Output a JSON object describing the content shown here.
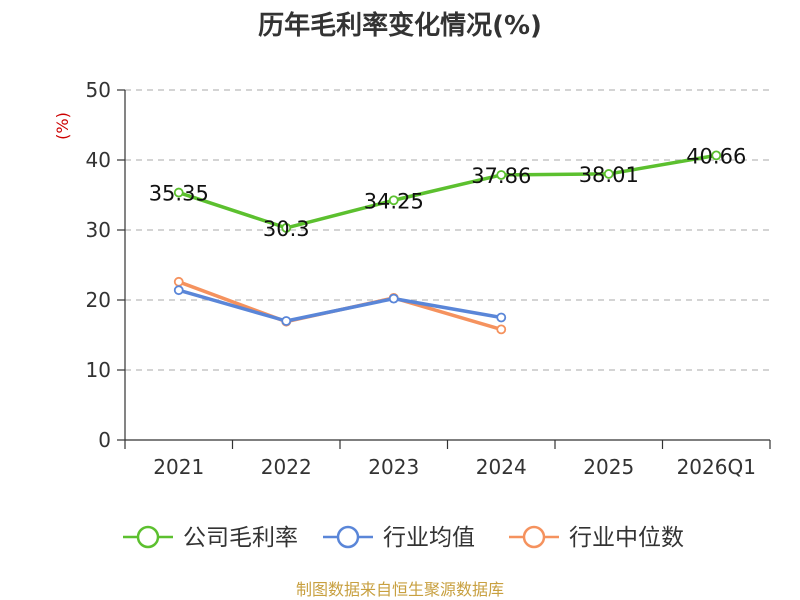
{
  "chart_data": {
    "type": "line",
    "title": "历年毛利率变化情况(%)",
    "ylabel": "(%)",
    "xlabel": "",
    "categories": [
      "2021",
      "2022",
      "2023",
      "2024",
      "2025",
      "2026Q1"
    ],
    "ylim": [
      0,
      50
    ],
    "yticks": [
      0,
      10,
      20,
      30,
      40,
      50
    ],
    "grid": true,
    "legend_position": "bottom",
    "series": [
      {
        "name": "公司毛利率",
        "color": "#5cc02f",
        "values": [
          35.35,
          30.3,
          34.25,
          37.86,
          38.01,
          40.66
        ],
        "labels": [
          "35.35",
          "30.3",
          "34.25",
          "37.86",
          "38.01",
          "40.66"
        ],
        "show_labels": true
      },
      {
        "name": "行业均值",
        "color": "#5a86d8",
        "values": [
          21.4,
          17.0,
          20.2,
          17.5,
          null,
          null
        ],
        "show_labels": false
      },
      {
        "name": "行业中位数",
        "color": "#f5925e",
        "values": [
          22.6,
          16.9,
          20.3,
          15.8,
          null,
          null
        ],
        "show_labels": false
      }
    ],
    "source": "制图数据来自恒生聚源数据库"
  }
}
